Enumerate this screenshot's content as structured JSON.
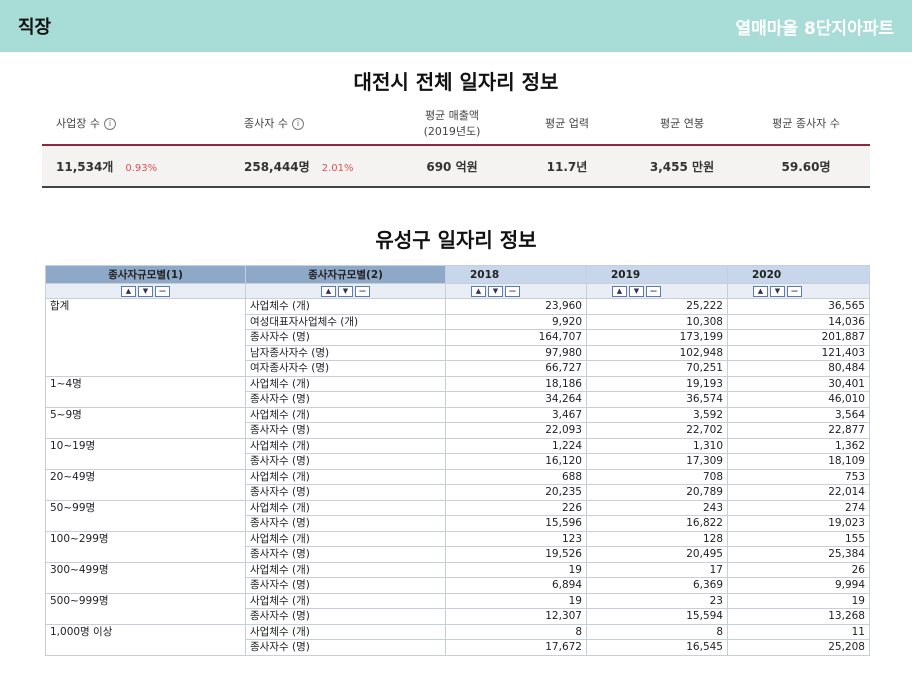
{
  "header": {
    "section": "직장",
    "complex": "열매마을 8단지아파트"
  },
  "city_section": {
    "title": "대전시 전체 일자리 정보",
    "labels": {
      "businesses": "사업장 수",
      "employees": "종사자 수",
      "avg_sales": "평균 매출액",
      "avg_sales_year": "(2019년도)",
      "avg_years": "평균 업력",
      "avg_salary": "평균 연봉",
      "avg_staff": "평균 종사자 수"
    },
    "values": {
      "businesses": "11,534개",
      "businesses_change": "0.93%",
      "employees": "258,444명",
      "employees_change": "2.01%",
      "avg_sales": "690 억원",
      "avg_years": "11.7년",
      "avg_salary": "3,455 만원",
      "avg_staff": "59.60명"
    },
    "info_icon": "info-circle-icon"
  },
  "district_section": {
    "title": "유성구 일자리 정보",
    "columns": [
      "종사자규모별(1)",
      "종사자규모별(2)",
      "2018",
      "2019",
      "2020"
    ],
    "sort_icons": [
      "sort-asc-icon",
      "sort-desc-icon",
      "collapse-icon"
    ],
    "rows": [
      [
        "합계",
        "사업체수 (개)",
        "23,960",
        "25,222",
        "36,565"
      ],
      [
        "",
        "여성대표자사업체수 (개)",
        "9,920",
        "10,308",
        "14,036"
      ],
      [
        "",
        "종사자수 (명)",
        "164,707",
        "173,199",
        "201,887"
      ],
      [
        "",
        "남자종사자수 (명)",
        "97,980",
        "102,948",
        "121,403"
      ],
      [
        "",
        "여자종사자수 (명)",
        "66,727",
        "70,251",
        "80,484"
      ],
      [
        "1~4명",
        "사업체수 (개)",
        "18,186",
        "19,193",
        "30,401"
      ],
      [
        "",
        "종사자수 (명)",
        "34,264",
        "36,574",
        "46,010"
      ],
      [
        "5~9명",
        "사업체수 (개)",
        "3,467",
        "3,592",
        "3,564"
      ],
      [
        "",
        "종사자수 (명)",
        "22,093",
        "22,702",
        "22,877"
      ],
      [
        "10~19명",
        "사업체수 (개)",
        "1,224",
        "1,310",
        "1,362"
      ],
      [
        "",
        "종사자수 (명)",
        "16,120",
        "17,309",
        "18,109"
      ],
      [
        "20~49명",
        "사업체수 (개)",
        "688",
        "708",
        "753"
      ],
      [
        "",
        "종사자수 (명)",
        "20,235",
        "20,789",
        "22,014"
      ],
      [
        "50~99명",
        "사업체수 (개)",
        "226",
        "243",
        "274"
      ],
      [
        "",
        "종사자수 (명)",
        "15,596",
        "16,822",
        "19,023"
      ],
      [
        "100~299명",
        "사업체수 (개)",
        "123",
        "128",
        "155"
      ],
      [
        "",
        "종사자수 (명)",
        "19,526",
        "20,495",
        "25,384"
      ],
      [
        "300~499명",
        "사업체수 (개)",
        "19",
        "17",
        "26"
      ],
      [
        "",
        "종사자수 (명)",
        "6,894",
        "6,369",
        "9,994"
      ],
      [
        "500~999명",
        "사업체수 (개)",
        "19",
        "23",
        "19"
      ],
      [
        "",
        "종사자수 (명)",
        "12,307",
        "15,594",
        "13,268"
      ],
      [
        "1,000명 이상",
        "사업체수 (개)",
        "8",
        "8",
        "11"
      ],
      [
        "",
        "종사자수 (명)",
        "17,672",
        "16,545",
        "25,208"
      ]
    ]
  },
  "colors": {
    "header_bg": "#a8dcd6",
    "accent_red": "#d9534f",
    "table_header": "#c7d6ea",
    "table_header_dark": "#8ea8c8"
  }
}
